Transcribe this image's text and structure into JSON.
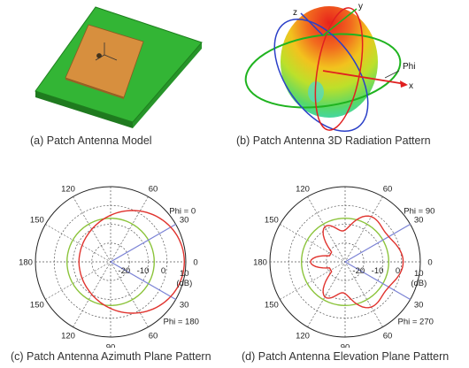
{
  "panel_a": {
    "caption": "(a) Patch Antenna Model",
    "colors": {
      "substrate_top": "#35b835",
      "substrate_edge": "#1e7f1e",
      "patch": "#d9923f"
    }
  },
  "panel_b": {
    "caption": "(b) Patch Antenna 3D Radiation Pattern",
    "axis_labels": {
      "x": "x",
      "y": "y",
      "z": "z",
      "phi": "Phi"
    },
    "colors": {
      "x_axis": "#e02020",
      "y_axis": "#1fb31f",
      "z_axis": "#2a3fc8"
    }
  },
  "panel_c": {
    "caption": "(c) Patch Antenna Azimuth Plane Pattern",
    "angle_labels": [
      "0",
      "30",
      "60",
      "90",
      "120",
      "150",
      "180",
      "150",
      "120",
      "90",
      "60",
      "30"
    ],
    "radial_labels": [
      "-20",
      "-10",
      "0",
      "10"
    ],
    "unit": "(dB)",
    "phi_top": "Phi = 0",
    "phi_bottom": "Phi = 180",
    "colors": {
      "pattern": "#e0332e",
      "reference": "#8cc43c",
      "phi_line": "#7b83d6"
    }
  },
  "panel_d": {
    "caption": "(d) Patch Antenna Elevation Plane Pattern",
    "angle_labels": [
      "0",
      "30",
      "60",
      "90",
      "120",
      "150",
      "180",
      "150",
      "120",
      "90",
      "60",
      "30"
    ],
    "radial_labels": [
      "-20",
      "-10",
      "0",
      "10"
    ],
    "unit": "(dB)",
    "phi_top": "Phi = 90",
    "phi_bottom": "Phi = 270",
    "colors": {
      "pattern": "#e0332e",
      "reference": "#8cc43c",
      "phi_line": "#7b83d6"
    }
  }
}
